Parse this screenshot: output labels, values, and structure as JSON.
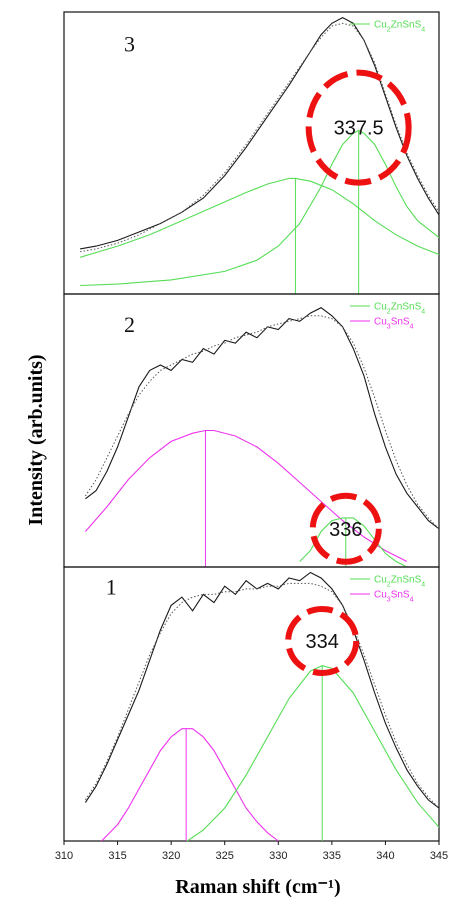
{
  "figure": {
    "xlabel": "Raman shift (cm⁻¹)",
    "ylabel": "Intensity (arb.units)"
  },
  "colors": {
    "measured": "#1a1a1a",
    "envelope": "#555555",
    "czts": "#55dd55",
    "cts": "#ee33ee",
    "highlight": "#ee1111"
  },
  "chart_data": [
    {
      "type": "line",
      "panel_label": "3",
      "xlim": [
        310,
        345
      ],
      "x_ticks": [],
      "legend": [
        {
          "name": "Cu2ZnSnS4",
          "color_key": "czts"
        }
      ],
      "annotation": {
        "text": "337.5",
        "x": 337.5
      },
      "series": [
        {
          "name": "measured",
          "style": "solid",
          "color_key": "measured",
          "x": [
            311.5,
            313,
            315,
            317,
            319,
            321,
            323,
            325,
            327,
            329,
            331,
            333,
            334,
            335,
            336,
            337,
            338,
            339,
            340,
            341,
            342,
            343,
            344,
            345
          ],
          "y": [
            0.16,
            0.17,
            0.19,
            0.22,
            0.25,
            0.29,
            0.34,
            0.42,
            0.52,
            0.63,
            0.74,
            0.86,
            0.92,
            0.96,
            0.98,
            0.96,
            0.9,
            0.81,
            0.7,
            0.59,
            0.49,
            0.41,
            0.34,
            0.28
          ]
        },
        {
          "name": "envelope",
          "style": "dotted",
          "color_key": "envelope",
          "x": [
            311.5,
            313,
            315,
            317,
            319,
            321,
            323,
            325,
            327,
            329,
            331,
            333,
            334,
            335,
            336,
            337,
            338,
            339,
            340,
            341,
            342,
            343,
            344,
            345
          ],
          "y": [
            0.15,
            0.16,
            0.18,
            0.21,
            0.25,
            0.29,
            0.35,
            0.43,
            0.53,
            0.64,
            0.75,
            0.86,
            0.91,
            0.95,
            0.96,
            0.95,
            0.9,
            0.82,
            0.71,
            0.6,
            0.5,
            0.42,
            0.35,
            0.29
          ]
        },
        {
          "name": "Cu2ZnSnS4",
          "style": "solid",
          "color_key": "czts",
          "peak": 337.5,
          "drop_line": true,
          "x": [
            311.5,
            315,
            320,
            325,
            328,
            330,
            332,
            334,
            335,
            336,
            337,
            337.5,
            338,
            339,
            340,
            341,
            342,
            343,
            345
          ],
          "y": [
            0.03,
            0.035,
            0.05,
            0.08,
            0.12,
            0.17,
            0.25,
            0.38,
            0.46,
            0.53,
            0.57,
            0.58,
            0.57,
            0.53,
            0.46,
            0.38,
            0.31,
            0.26,
            0.2
          ]
        },
        {
          "name": "Cu2ZnSnS4",
          "style": "solid",
          "color_key": "czts",
          "peak": 331.6,
          "drop_line": true,
          "x": [
            311.5,
            315,
            318,
            321,
            324,
            327,
            329,
            331,
            331.6,
            333,
            335,
            337,
            339,
            341,
            343,
            345
          ],
          "y": [
            0.13,
            0.17,
            0.21,
            0.26,
            0.31,
            0.36,
            0.39,
            0.41,
            0.41,
            0.4,
            0.37,
            0.32,
            0.26,
            0.21,
            0.17,
            0.14
          ]
        }
      ]
    },
    {
      "type": "line",
      "panel_label": "2",
      "xlim": [
        310,
        345
      ],
      "x_ticks": [],
      "legend": [
        {
          "name": "Cu2ZnSnS4",
          "color_key": "czts"
        },
        {
          "name": "Cu3SnS4",
          "color_key": "cts"
        }
      ],
      "annotation": {
        "text": "336",
        "x": 336.3
      },
      "series": [
        {
          "name": "measured",
          "style": "solid",
          "color_key": "measured",
          "x": [
            312,
            313,
            314,
            315,
            316,
            317,
            318,
            319,
            320,
            321,
            322,
            323,
            324,
            325,
            326,
            327,
            328,
            329,
            330,
            331,
            332,
            333,
            334,
            335,
            336,
            337,
            338,
            339,
            340,
            341,
            342,
            343,
            344,
            345
          ],
          "y": [
            0.25,
            0.28,
            0.35,
            0.44,
            0.55,
            0.66,
            0.72,
            0.74,
            0.72,
            0.76,
            0.75,
            0.8,
            0.78,
            0.83,
            0.82,
            0.86,
            0.84,
            0.88,
            0.87,
            0.91,
            0.9,
            0.93,
            0.95,
            0.92,
            0.88,
            0.8,
            0.7,
            0.56,
            0.44,
            0.34,
            0.27,
            0.22,
            0.17,
            0.14
          ]
        },
        {
          "name": "envelope",
          "style": "dotted",
          "color_key": "envelope",
          "x": [
            312,
            313,
            314,
            315,
            316,
            317,
            318,
            319,
            320,
            321,
            322,
            323,
            324,
            325,
            326,
            327,
            328,
            329,
            330,
            331,
            332,
            333,
            334,
            335,
            336,
            337,
            338,
            339,
            340,
            341,
            342,
            343,
            344,
            345
          ],
          "y": [
            0.26,
            0.32,
            0.4,
            0.48,
            0.56,
            0.63,
            0.68,
            0.72,
            0.74,
            0.76,
            0.78,
            0.79,
            0.81,
            0.82,
            0.84,
            0.85,
            0.86,
            0.88,
            0.89,
            0.9,
            0.91,
            0.92,
            0.92,
            0.91,
            0.88,
            0.82,
            0.73,
            0.62,
            0.5,
            0.39,
            0.3,
            0.23,
            0.18,
            0.14
          ]
        },
        {
          "name": "Cu3SnS4",
          "style": "solid",
          "color_key": "cts",
          "peak": 323.2,
          "drop_line": true,
          "x": [
            312,
            314,
            316,
            318,
            320,
            322,
            323.2,
            324,
            326,
            328,
            330,
            332,
            334,
            336,
            338,
            340,
            342
          ],
          "y": [
            0.13,
            0.22,
            0.32,
            0.4,
            0.46,
            0.49,
            0.5,
            0.5,
            0.48,
            0.44,
            0.38,
            0.31,
            0.24,
            0.17,
            0.11,
            0.06,
            0.02
          ]
        },
        {
          "name": "Cu2ZnSnS4",
          "style": "solid",
          "color_key": "czts",
          "peak": 336.3,
          "drop_line": true,
          "x": [
            332,
            333,
            334,
            335,
            336,
            336.3,
            337,
            338,
            339,
            340,
            341,
            342
          ],
          "y": [
            0.02,
            0.06,
            0.13,
            0.17,
            0.18,
            0.18,
            0.18,
            0.15,
            0.1,
            0.05,
            0.02,
            0.0
          ]
        }
      ]
    },
    {
      "type": "line",
      "panel_label": "1",
      "xlim": [
        310,
        345
      ],
      "x_ticks": [
        310,
        315,
        320,
        325,
        330,
        335,
        340,
        345
      ],
      "legend": [
        {
          "name": "Cu2ZnSnS4",
          "color_key": "czts"
        },
        {
          "name": "Cu3SnS4",
          "color_key": "cts"
        }
      ],
      "annotation": {
        "text": "334",
        "x": 334.1
      },
      "series": [
        {
          "name": "measured",
          "style": "solid",
          "color_key": "measured",
          "x": [
            312,
            313,
            314,
            315,
            316,
            317,
            318,
            319,
            320,
            321,
            322,
            323,
            324,
            325,
            326,
            327,
            328,
            329,
            330,
            331,
            332,
            333,
            334,
            335,
            336,
            337,
            338,
            339,
            340,
            341,
            342,
            343,
            344,
            345
          ],
          "y": [
            0.14,
            0.2,
            0.28,
            0.37,
            0.46,
            0.55,
            0.66,
            0.77,
            0.86,
            0.89,
            0.84,
            0.9,
            0.87,
            0.93,
            0.9,
            0.95,
            0.92,
            0.94,
            0.92,
            0.96,
            0.95,
            0.98,
            0.96,
            0.92,
            0.86,
            0.77,
            0.66,
            0.54,
            0.43,
            0.34,
            0.26,
            0.2,
            0.15,
            0.12
          ]
        },
        {
          "name": "envelope",
          "style": "dotted",
          "color_key": "envelope",
          "x": [
            312,
            313,
            314,
            315,
            316,
            317,
            318,
            319,
            320,
            321,
            322,
            323,
            324,
            325,
            326,
            327,
            328,
            329,
            330,
            331,
            332,
            333,
            334,
            335,
            336,
            337,
            338,
            339,
            340,
            341,
            342,
            343,
            344,
            345
          ],
          "y": [
            0.15,
            0.21,
            0.29,
            0.38,
            0.48,
            0.58,
            0.68,
            0.76,
            0.83,
            0.87,
            0.89,
            0.9,
            0.9,
            0.91,
            0.91,
            0.92,
            0.92,
            0.93,
            0.93,
            0.94,
            0.94,
            0.94,
            0.93,
            0.91,
            0.86,
            0.78,
            0.68,
            0.57,
            0.46,
            0.36,
            0.28,
            0.21,
            0.16,
            0.12
          ]
        },
        {
          "name": "Cu3SnS4",
          "style": "solid",
          "color_key": "cts",
          "peak": 321.4,
          "drop_line": true,
          "x": [
            313.5,
            315,
            316,
            317,
            318,
            319,
            320,
            321,
            321.4,
            322,
            323,
            324,
            325,
            326,
            327,
            328,
            329,
            330
          ],
          "y": [
            0.0,
            0.06,
            0.12,
            0.19,
            0.26,
            0.33,
            0.38,
            0.41,
            0.41,
            0.41,
            0.38,
            0.33,
            0.26,
            0.19,
            0.12,
            0.07,
            0.03,
            0.0
          ]
        },
        {
          "name": "Cu2ZnSnS4",
          "style": "solid",
          "color_key": "czts",
          "peak": 334.1,
          "drop_line": true,
          "x": [
            321.5,
            323,
            325,
            327,
            329,
            331,
            333,
            334.1,
            335,
            337,
            339,
            341,
            343,
            345
          ],
          "y": [
            0.0,
            0.04,
            0.12,
            0.24,
            0.38,
            0.52,
            0.62,
            0.64,
            0.63,
            0.54,
            0.4,
            0.26,
            0.14,
            0.05
          ]
        }
      ]
    }
  ]
}
